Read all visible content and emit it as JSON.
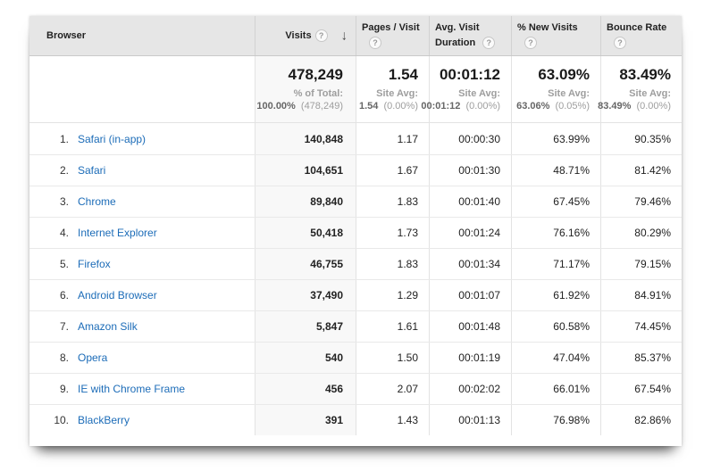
{
  "table": {
    "columns": [
      {
        "label": "Browser"
      },
      {
        "label": "Visits"
      },
      {
        "line1": "Pages / Visit",
        "line2": ""
      },
      {
        "line1": "Avg. Visit",
        "line2": "Duration"
      },
      {
        "line1": "% New Visits",
        "line2": ""
      },
      {
        "line1": "Bounce Rate",
        "line2": ""
      }
    ],
    "summary": {
      "visits": {
        "value": "478,249",
        "caption": "% of Total:",
        "avg": "100.00%",
        "delta": "(478,249)"
      },
      "pages_visit": {
        "value": "1.54",
        "caption": "Site Avg:",
        "avg": "1.54",
        "delta": "(0.00%)"
      },
      "avg_visit_duration": {
        "value": "00:01:12",
        "caption": "Site Avg:",
        "avg": "00:01:12",
        "delta": "(0.00%)"
      },
      "pct_new_visits": {
        "value": "63.09%",
        "caption": "Site Avg:",
        "avg": "63.06%",
        "delta": "(0.05%)"
      },
      "bounce_rate": {
        "value": "83.49%",
        "caption": "Site Avg:",
        "avg": "83.49%",
        "delta": "(0.00%)"
      }
    },
    "rows": [
      {
        "rank": "1.",
        "browser": "Safari (in-app)",
        "visits": "140,848",
        "pages_visit": "1.17",
        "avg_visit_duration": "00:00:30",
        "pct_new_visits": "63.99%",
        "bounce_rate": "90.35%"
      },
      {
        "rank": "2.",
        "browser": "Safari",
        "visits": "104,651",
        "pages_visit": "1.67",
        "avg_visit_duration": "00:01:30",
        "pct_new_visits": "48.71%",
        "bounce_rate": "81.42%"
      },
      {
        "rank": "3.",
        "browser": "Chrome",
        "visits": "89,840",
        "pages_visit": "1.83",
        "avg_visit_duration": "00:01:40",
        "pct_new_visits": "67.45%",
        "bounce_rate": "79.46%"
      },
      {
        "rank": "4.",
        "browser": "Internet Explorer",
        "visits": "50,418",
        "pages_visit": "1.73",
        "avg_visit_duration": "00:01:24",
        "pct_new_visits": "76.16%",
        "bounce_rate": "80.29%"
      },
      {
        "rank": "5.",
        "browser": "Firefox",
        "visits": "46,755",
        "pages_visit": "1.83",
        "avg_visit_duration": "00:01:34",
        "pct_new_visits": "71.17%",
        "bounce_rate": "79.15%"
      },
      {
        "rank": "6.",
        "browser": "Android Browser",
        "visits": "37,490",
        "pages_visit": "1.29",
        "avg_visit_duration": "00:01:07",
        "pct_new_visits": "61.92%",
        "bounce_rate": "84.91%"
      },
      {
        "rank": "7.",
        "browser": "Amazon Silk",
        "visits": "5,847",
        "pages_visit": "1.61",
        "avg_visit_duration": "00:01:48",
        "pct_new_visits": "60.58%",
        "bounce_rate": "74.45%"
      },
      {
        "rank": "8.",
        "browser": "Opera",
        "visits": "540",
        "pages_visit": "1.50",
        "avg_visit_duration": "00:01:19",
        "pct_new_visits": "47.04%",
        "bounce_rate": "85.37%"
      },
      {
        "rank": "9.",
        "browser": "IE with Chrome Frame",
        "visits": "456",
        "pages_visit": "2.07",
        "avg_visit_duration": "00:02:02",
        "pct_new_visits": "66.01%",
        "bounce_rate": "67.54%"
      },
      {
        "rank": "10.",
        "browser": "BlackBerry",
        "visits": "391",
        "pages_visit": "1.43",
        "avg_visit_duration": "00:01:13",
        "pct_new_visits": "76.98%",
        "bounce_rate": "82.86%"
      }
    ]
  },
  "icons": {
    "help": "?",
    "sort_desc": "↓"
  },
  "colors": {
    "link_blue": "#1c6cb8",
    "header_bg": "#e6e6e6",
    "sorted_column_bg": "#f8f8f8"
  }
}
